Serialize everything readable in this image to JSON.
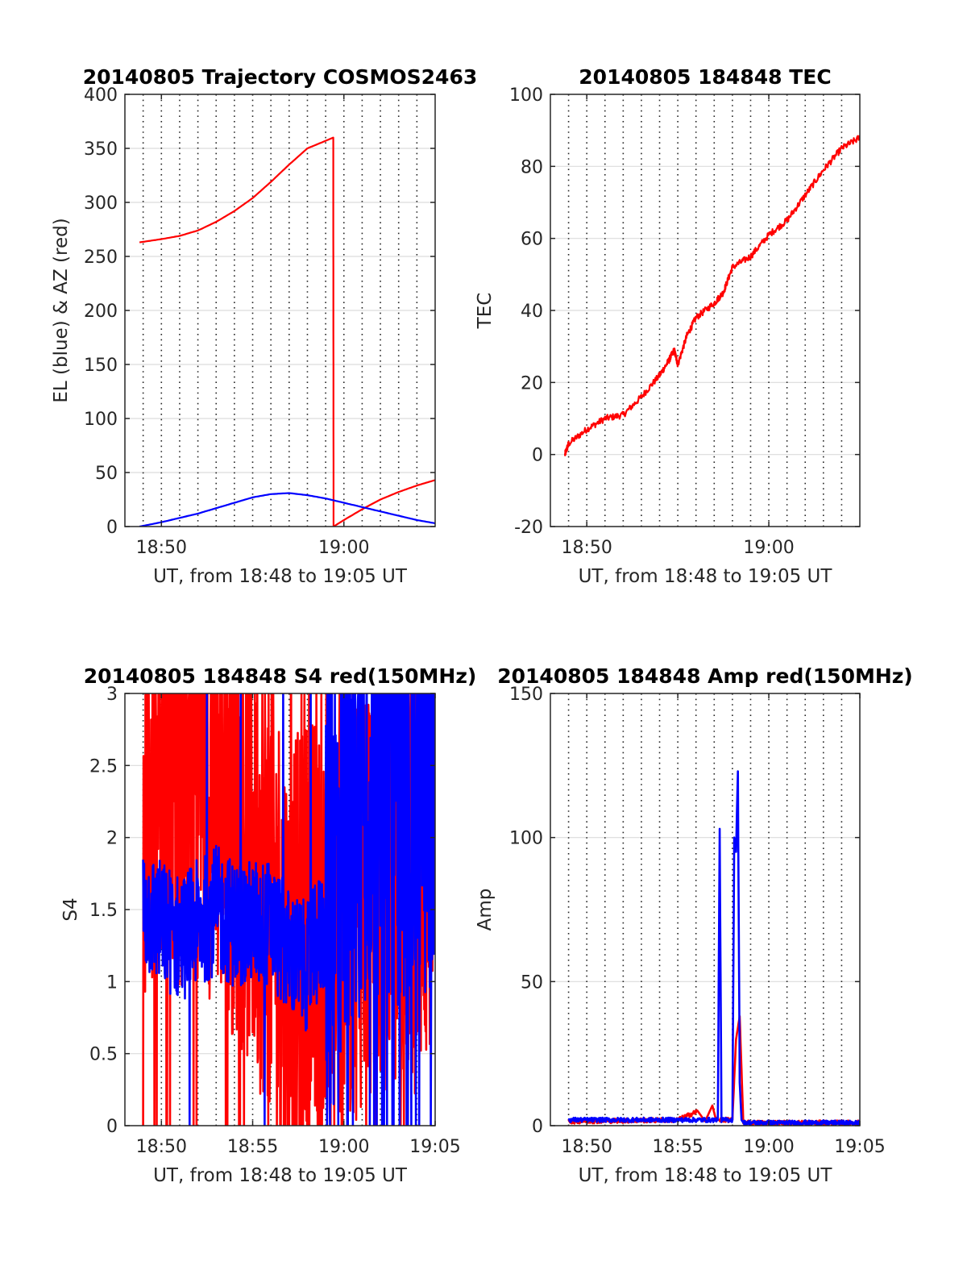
{
  "figure": {
    "colors": {
      "red": "#ff0000",
      "blue": "#0000ff",
      "axis": "#262626",
      "grid": "#dcdcdc"
    }
  },
  "chart_data": [
    {
      "type": "line",
      "title": "20140805 Trajectory COSMOS2463",
      "xlabel": "UT, from 18:48 to 19:05 UT",
      "ylabel": "EL (blue) & AZ (red)",
      "xlim": [
        "18:48",
        "19:05"
      ],
      "ylim": [
        0,
        400
      ],
      "yticks": [
        "0",
        "50",
        "100",
        "150",
        "200",
        "250",
        "300",
        "350",
        "400"
      ],
      "xticks": [
        "18:50",
        "19:00"
      ],
      "series": [
        {
          "color": "#ff0000",
          "x": [
            "18:48:48",
            "18:50",
            "18:51",
            "18:52",
            "18:53",
            "18:54",
            "18:55",
            "18:56",
            "18:57",
            "18:58",
            "18:59",
            "18:59:25",
            "18:59:26",
            "19:00",
            "19:01",
            "19:02",
            "19:03",
            "19:04",
            "19:05"
          ],
          "values": [
            263,
            266,
            269,
            274,
            282,
            292,
            304,
            319,
            335,
            350,
            357,
            360,
            0,
            6,
            16,
            25,
            32,
            38,
            43
          ]
        },
        {
          "color": "#0000ff",
          "x": [
            "18:48:48",
            "18:50",
            "18:51",
            "18:52",
            "18:53",
            "18:54",
            "18:55",
            "18:56",
            "18:57",
            "18:58",
            "18:59",
            "19:00",
            "19:01",
            "19:02",
            "19:03",
            "19:04",
            "19:05"
          ],
          "values": [
            0,
            4,
            8,
            12,
            17,
            22,
            27,
            30,
            31,
            29,
            26,
            22,
            18,
            14,
            10,
            6,
            3
          ]
        }
      ]
    },
    {
      "type": "line",
      "title": "20140805 184848 TEC",
      "xlabel": "UT, from 18:48 to 19:05 UT",
      "ylabel": "TEC",
      "xlim": [
        "18:48",
        "19:05"
      ],
      "ylim": [
        -20,
        100
      ],
      "yticks": [
        "-20",
        "0",
        "20",
        "40",
        "60",
        "80",
        "100"
      ],
      "xticks": [
        "18:50",
        "19:00"
      ],
      "series": [
        {
          "color": "#ff0000",
          "x": [
            "18:48:48",
            "18:49",
            "18:50",
            "18:51",
            "18:52",
            "18:53",
            "18:54",
            "18:54:30",
            "18:54:48",
            "18:55",
            "18:55:30",
            "18:56",
            "18:57",
            "18:57:30",
            "18:58",
            "18:59",
            "19:00",
            "19:01",
            "19:02",
            "19:03",
            "19:04",
            "19:05"
          ],
          "values": [
            0,
            3,
            7,
            10,
            11,
            16,
            22,
            26,
            29,
            25,
            33,
            38,
            42,
            45,
            52,
            55,
            61,
            65,
            72,
            79,
            85,
            88
          ]
        }
      ]
    },
    {
      "type": "line",
      "title": "20140805 184848 S4 red(150MHz)",
      "xlabel": "UT, from 18:48 to 19:05 UT",
      "ylabel": "S4",
      "xlim": [
        "18:48",
        "19:05"
      ],
      "ylim": [
        0,
        3
      ],
      "yticks": [
        "0",
        "0.5",
        "1",
        "1.5",
        "2",
        "2.5",
        "3"
      ],
      "xticks": [
        "18:50",
        "18:55",
        "19:00",
        "19:05"
      ],
      "series": [
        {
          "color": "#ff0000",
          "x": [
            "18:49",
            "18:50",
            "18:51",
            "18:52",
            "18:53",
            "18:54",
            "18:55",
            "18:56",
            "18:57",
            "18:58",
            "18:59",
            "19:00",
            "19:01",
            "19:02",
            "19:03",
            "19:04",
            "19:05"
          ],
          "values": [
            2.3,
            2.8,
            2.5,
            2.6,
            2.4,
            2.2,
            1.9,
            1.7,
            1.0,
            1.3,
            1.2,
            1.5,
            1.7,
            1.8,
            1.9,
            1.8,
            2.0
          ]
        },
        {
          "color": "#0000ff",
          "x": [
            "18:49",
            "18:50",
            "18:51",
            "18:52",
            "18:53",
            "18:54",
            "18:55",
            "18:56",
            "18:57",
            "18:58",
            "18:59",
            "19:00",
            "19:01",
            "19:02",
            "19:03",
            "19:04",
            "19:05"
          ],
          "values": [
            1.5,
            1.4,
            1.3,
            1.4,
            1.5,
            1.4,
            1.4,
            1.4,
            1.2,
            1.1,
            1.4,
            2.2,
            2.5,
            2.6,
            2.5,
            2.6,
            2.6
          ]
        }
      ]
    },
    {
      "type": "line",
      "title": "20140805 184848 Amp red(150MHz)",
      "xlabel": "UT, from 18:48 to 19:05 UT",
      "ylabel": "Amp",
      "xlim": [
        "18:48",
        "19:05"
      ],
      "ylim": [
        0,
        150
      ],
      "yticks": [
        "0",
        "50",
        "100",
        "150"
      ],
      "xticks": [
        "18:50",
        "18:55",
        "19:00",
        "19:05"
      ],
      "series": [
        {
          "color": "#ff0000",
          "x": [
            "18:49",
            "18:55",
            "18:56:06",
            "18:56:30",
            "18:56:54",
            "18:57:06",
            "18:57:18",
            "18:58",
            "18:58:12",
            "18:58:24",
            "18:58:36",
            "19:00",
            "19:05"
          ],
          "values": [
            1.5,
            2,
            5,
            1.5,
            7,
            2,
            2,
            2,
            30,
            38,
            1,
            1,
            1
          ]
        },
        {
          "color": "#0000ff",
          "x": [
            "18:49",
            "18:55",
            "18:57:12",
            "18:57:18",
            "18:57:24",
            "18:58",
            "18:58:06",
            "18:58:12",
            "18:58:18",
            "18:58:24",
            "18:58:30",
            "18:58:36",
            "19:00",
            "19:05"
          ],
          "values": [
            2,
            2,
            2,
            103,
            2,
            2,
            100,
            95,
            123,
            15,
            2,
            1,
            1,
            1
          ]
        }
      ]
    }
  ]
}
